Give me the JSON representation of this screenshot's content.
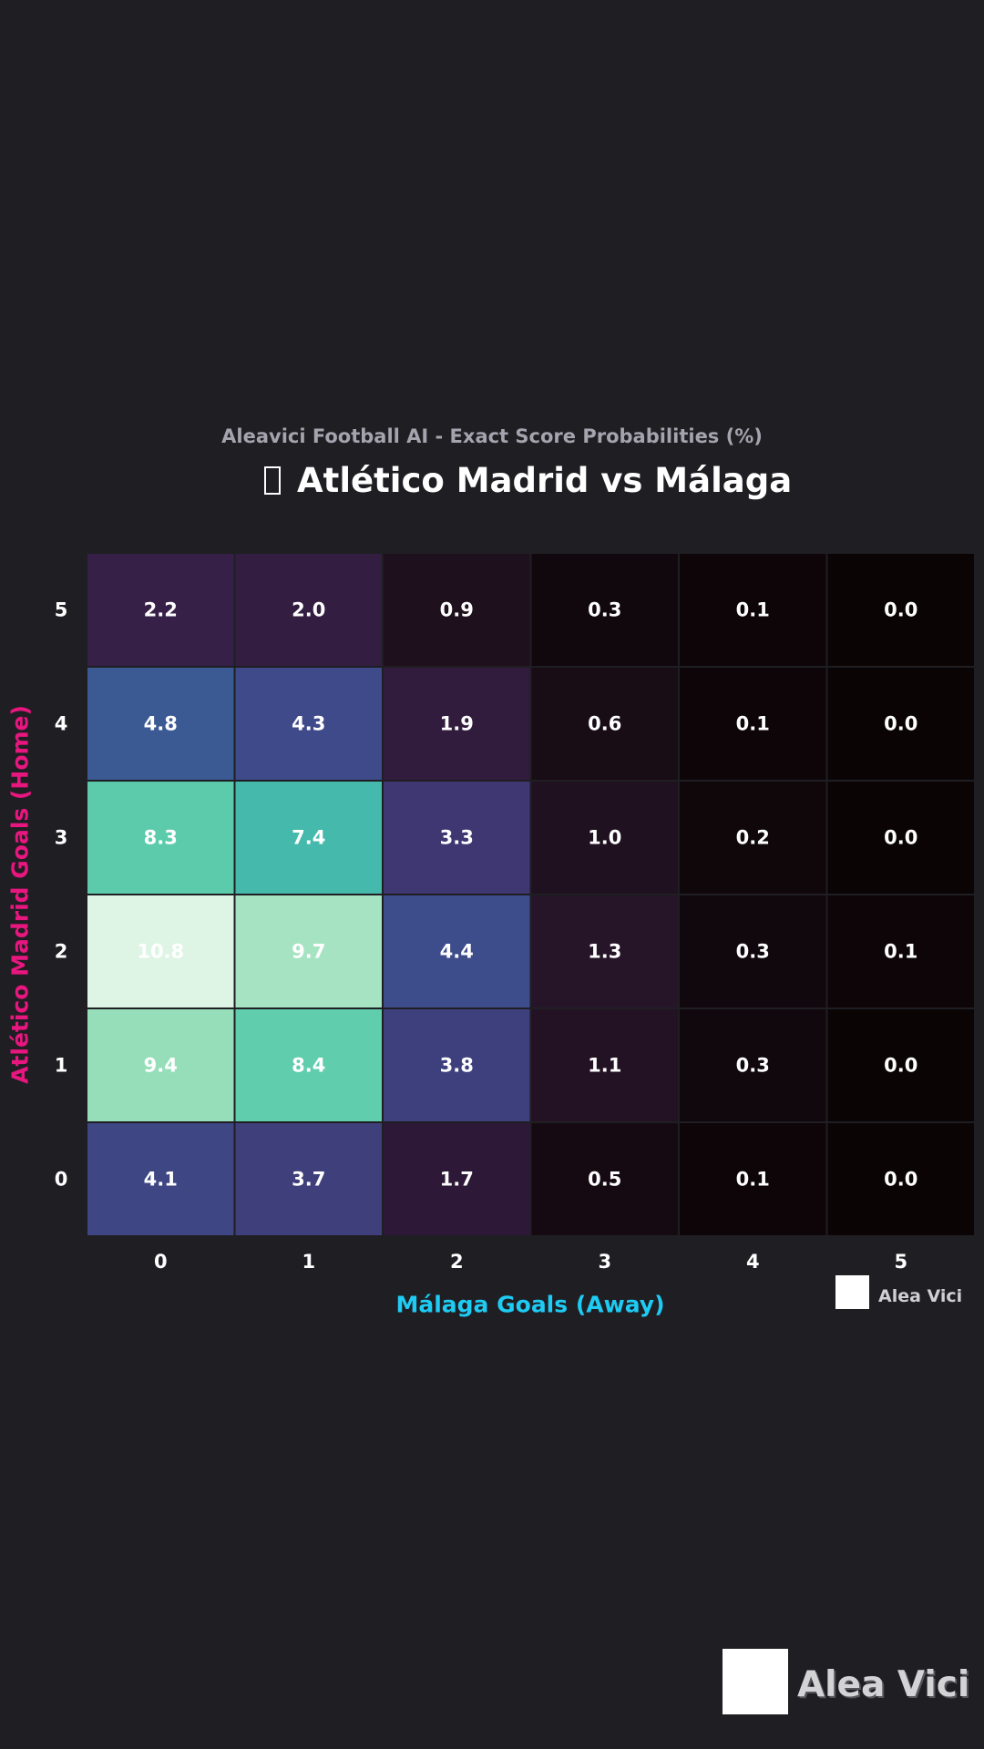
{
  "header": {
    "subtitle": "Aleavici Football AI - Exact Score Probabilities (%)",
    "title": "Atlético Madrid vs Málaga"
  },
  "branding": {
    "small_label": "Alea Vici",
    "large_label": "Alea Vici"
  },
  "chart_data": {
    "type": "heatmap",
    "title": "Atlético Madrid vs Málaga",
    "subtitle": "Aleavici Football AI - Exact Score Probabilities (%)",
    "xlabel": "Málaga Goals (Away)",
    "ylabel": "Atlético Madrid Goals (Home)",
    "x_categories": [
      "0",
      "1",
      "2",
      "3",
      "4",
      "5"
    ],
    "y_categories": [
      "5",
      "4",
      "3",
      "2",
      "1",
      "0"
    ],
    "values": [
      [
        2.2,
        2.0,
        0.9,
        0.3,
        0.1,
        0.0
      ],
      [
        4.8,
        4.3,
        1.9,
        0.6,
        0.1,
        0.0
      ],
      [
        8.3,
        7.4,
        3.3,
        1.0,
        0.2,
        0.0
      ],
      [
        10.8,
        9.7,
        4.4,
        1.3,
        0.3,
        0.1
      ],
      [
        9.4,
        8.4,
        3.8,
        1.1,
        0.3,
        0.0
      ],
      [
        4.1,
        3.7,
        1.7,
        0.5,
        0.1,
        0.0
      ]
    ],
    "value_format": "0.0",
    "colorscale": "mako",
    "colorbar": false,
    "grid": false,
    "colors": {
      "title": "#ffffff",
      "subtitle": "#a5a3ad",
      "xlabel": "#1ecbf3",
      "ylabel": "#e8167f",
      "background": "#1f1e23"
    }
  }
}
